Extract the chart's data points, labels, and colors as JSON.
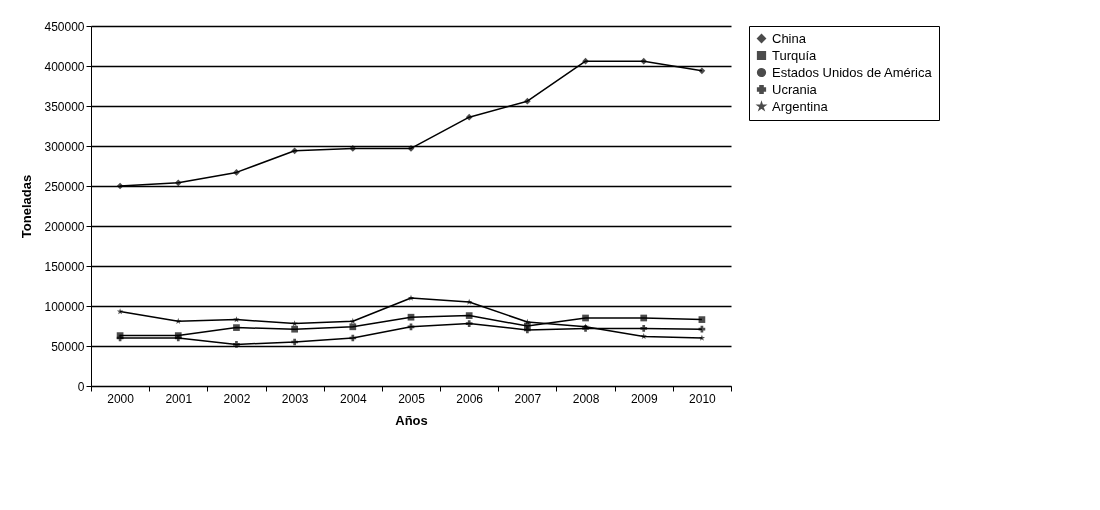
{
  "chart_data": {
    "type": "line",
    "xlabel": "Años",
    "ylabel": "Toneladas",
    "categories": [
      "2000",
      "2001",
      "2002",
      "2003",
      "2004",
      "2005",
      "2006",
      "2007",
      "2008",
      "2009",
      "2010"
    ],
    "series": [
      {
        "name": "China",
        "color": "#000000",
        "marker": "diamond",
        "values": [
          250000,
          254000,
          267000,
          294000,
          297000,
          297000,
          336000,
          356000,
          406000,
          406000,
          394000
        ]
      },
      {
        "name": "Turquía",
        "color": "#000000",
        "marker": "square",
        "values": [
          63000,
          63000,
          73000,
          71000,
          74000,
          86000,
          88000,
          75000,
          85000,
          85000,
          83000
        ]
      },
      {
        "name": "Estados Unidos de América",
        "color": "#000000",
        "marker": "circle",
        "values": [
          null,
          null,
          null,
          null,
          null,
          null,
          null,
          null,
          null,
          null,
          null
        ]
      },
      {
        "name": "Ucrania",
        "color": "#000000",
        "marker": "cross",
        "values": [
          60000,
          60000,
          52000,
          55000,
          60000,
          74000,
          78000,
          70000,
          72000,
          72000,
          71000
        ]
      },
      {
        "name": "Argentina",
        "color": "#000000",
        "marker": "star",
        "values": [
          93000,
          81000,
          83000,
          78000,
          81000,
          110000,
          105000,
          80000,
          74000,
          62000,
          60000
        ]
      }
    ],
    "ylim": [
      0,
      450000
    ],
    "yticks": [
      0,
      50000,
      100000,
      150000,
      200000,
      250000,
      300000,
      350000,
      400000,
      450000
    ],
    "grid": "y",
    "legend": "right"
  }
}
